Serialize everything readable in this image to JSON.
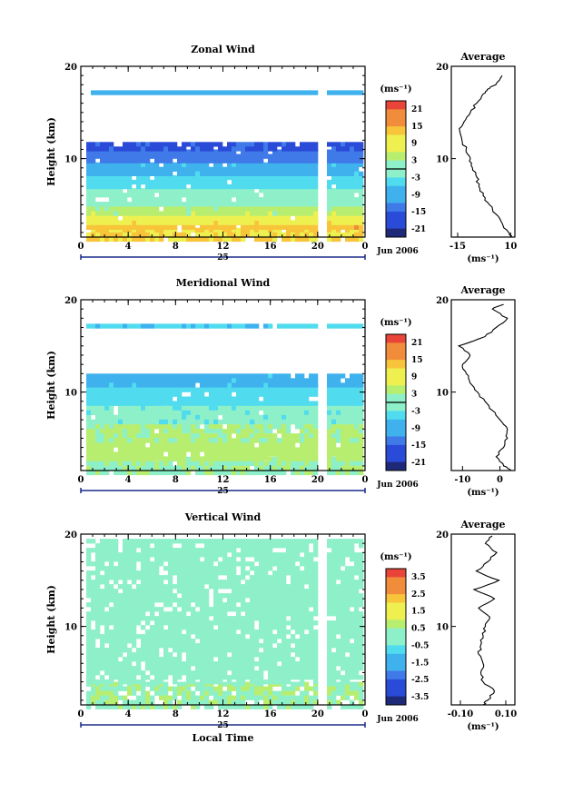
{
  "colors": {
    "scale": [
      "#1e2a78",
      "#2a4ad8",
      "#3f7ae8",
      "#3fb2ee",
      "#50dcee",
      "#8df0c8",
      "#b8ee70",
      "#eef050",
      "#f8c43a",
      "#f08c3a",
      "#e8443a"
    ]
  },
  "chart_data": [
    {
      "type": "heatmap",
      "title": "Zonal Wind",
      "ylabel": "Height (km)",
      "xlabel": "",
      "x_ticks": [
        "0",
        "4",
        "8",
        "12",
        "16",
        "20",
        "0"
      ],
      "y_ticks": [
        "20",
        "10"
      ],
      "x_range_hours": [
        0,
        24
      ],
      "ylim_km": [
        1.5,
        20
      ],
      "day_label": "25",
      "date_label": "Jun 2006",
      "colorbar": {
        "unit": "(ms⁻¹)",
        "ticks": [
          "21",
          "15",
          "9",
          "3",
          "-3",
          "-9",
          "-15",
          "-21"
        ],
        "range": [
          -24,
          24
        ]
      },
      "profile": {
        "title": "Average",
        "x_ticks": [
          "-15",
          "10"
        ],
        "xlim": [
          -18,
          12
        ],
        "xlabel": "(ms⁻¹)",
        "y_ticks": [
          "20",
          "10"
        ],
        "height_km": [
          1.5,
          2,
          3,
          4,
          5,
          6,
          7,
          8,
          9,
          10,
          11,
          12,
          13,
          14,
          15,
          16,
          17,
          17.5,
          18,
          19
        ],
        "values": [
          10,
          9,
          6,
          3,
          0,
          -3,
          -5,
          -6,
          -8,
          -9,
          -11,
          -13,
          -14,
          -12,
          -9,
          -6,
          -3,
          -1,
          3,
          6
        ]
      },
      "layers_km_to_value": [
        {
          "h": [
            1.5,
            2.5
          ],
          "v": 12
        },
        {
          "h": [
            2.5,
            3.3
          ],
          "v": 15
        },
        {
          "h": [
            3.3,
            4.3
          ],
          "v": 10
        },
        {
          "h": [
            4.3,
            5.3
          ],
          "v": 4
        },
        {
          "h": [
            5.3,
            6.8
          ],
          "v": 0
        },
        {
          "h": [
            6.8,
            8.2
          ],
          "v": -5
        },
        {
          "h": [
            8.2,
            9.6
          ],
          "v": -9
        },
        {
          "h": [
            9.6,
            11.0
          ],
          "v": -14
        },
        {
          "h": [
            11.0,
            11.8
          ],
          "v": -18
        },
        {
          "h": [
            17.0,
            17.4
          ],
          "v": -10
        }
      ],
      "gap_hour": 20.3
    },
    {
      "type": "heatmap",
      "title": "Meridional Wind",
      "ylabel": "Height (km)",
      "xlabel": "",
      "x_ticks": [
        "0",
        "4",
        "8",
        "12",
        "16",
        "20",
        "0"
      ],
      "y_ticks": [
        "20",
        "10"
      ],
      "x_range_hours": [
        0,
        24
      ],
      "ylim_km": [
        1.5,
        20
      ],
      "day_label": "25",
      "date_label": "Jun 2006",
      "colorbar": {
        "unit": "(ms⁻¹)",
        "ticks": [
          "21",
          "15",
          "9",
          "3",
          "-3",
          "-9",
          "-15",
          "-21"
        ],
        "range": [
          -24,
          24
        ]
      },
      "profile": {
        "title": "Average",
        "x_ticks": [
          "-10",
          "0"
        ],
        "xlim": [
          -13,
          4
        ],
        "xlabel": "(ms⁻¹)",
        "y_ticks": [
          "20",
          "10"
        ],
        "height_km": [
          1.5,
          2,
          3,
          4,
          5,
          6,
          7,
          8,
          9,
          10,
          11,
          12,
          13,
          14,
          15,
          16,
          17,
          18,
          19,
          19.5
        ],
        "values": [
          3,
          1,
          -1,
          1,
          2,
          2,
          0,
          -2,
          -4,
          -6,
          -8,
          -9,
          -10,
          -8,
          -11,
          -4,
          -1,
          2,
          -2,
          1
        ]
      },
      "layers_km_to_value": [
        {
          "h": [
            1.5,
            3.0
          ],
          "v": 2
        },
        {
          "h": [
            3.0,
            5.0
          ],
          "v": 5
        },
        {
          "h": [
            5.0,
            7.0
          ],
          "v": 3
        },
        {
          "h": [
            7.0,
            9.0
          ],
          "v": -1
        },
        {
          "h": [
            9.0,
            11.0
          ],
          "v": -5
        },
        {
          "h": [
            11.0,
            12.0
          ],
          "v": -9
        },
        {
          "h": [
            17.0,
            17.4
          ],
          "v": -6
        }
      ],
      "gap_hour": 20.3
    },
    {
      "type": "heatmap",
      "title": "Vertical Wind",
      "ylabel": "Height (km)",
      "xlabel": "Local Time",
      "x_ticks": [
        "0",
        "4",
        "8",
        "12",
        "16",
        "20",
        "0"
      ],
      "y_ticks": [
        "20",
        "10"
      ],
      "x_range_hours": [
        0,
        24
      ],
      "ylim_km": [
        1.5,
        20
      ],
      "day_label": "25",
      "date_label": "Jun 2006",
      "colorbar": {
        "unit": "(ms⁻¹)",
        "ticks": [
          "3.5",
          "2.5",
          "1.5",
          "0.5",
          "-0.5",
          "-1.5",
          "-2.5",
          "-3.5"
        ],
        "range": [
          -4,
          4
        ]
      },
      "profile": {
        "title": "Average",
        "x_ticks": [
          "-0.10",
          "0.10"
        ],
        "xlim": [
          -0.14,
          0.14
        ],
        "xlabel": "(ms⁻¹)",
        "y_ticks": [
          "20",
          "10"
        ],
        "height_km": [
          1.5,
          2,
          3,
          4,
          5,
          6,
          7,
          8,
          9,
          10,
          11,
          12,
          13,
          14,
          15,
          16,
          17,
          18,
          19,
          19.8
        ],
        "values": [
          0.0,
          0.02,
          0.05,
          0.0,
          -0.01,
          0.0,
          -0.02,
          -0.01,
          0.0,
          0.01,
          0.03,
          -0.02,
          0.05,
          -0.04,
          0.07,
          -0.03,
          0.02,
          0.06,
          0.01,
          0.04
        ]
      },
      "layers_km_to_value": [
        {
          "h": [
            1.5,
            4.0
          ],
          "v": 0.3
        },
        {
          "h": [
            4.0,
            19.5
          ],
          "v": 0.0
        }
      ],
      "gap_hour": 20.3
    }
  ]
}
